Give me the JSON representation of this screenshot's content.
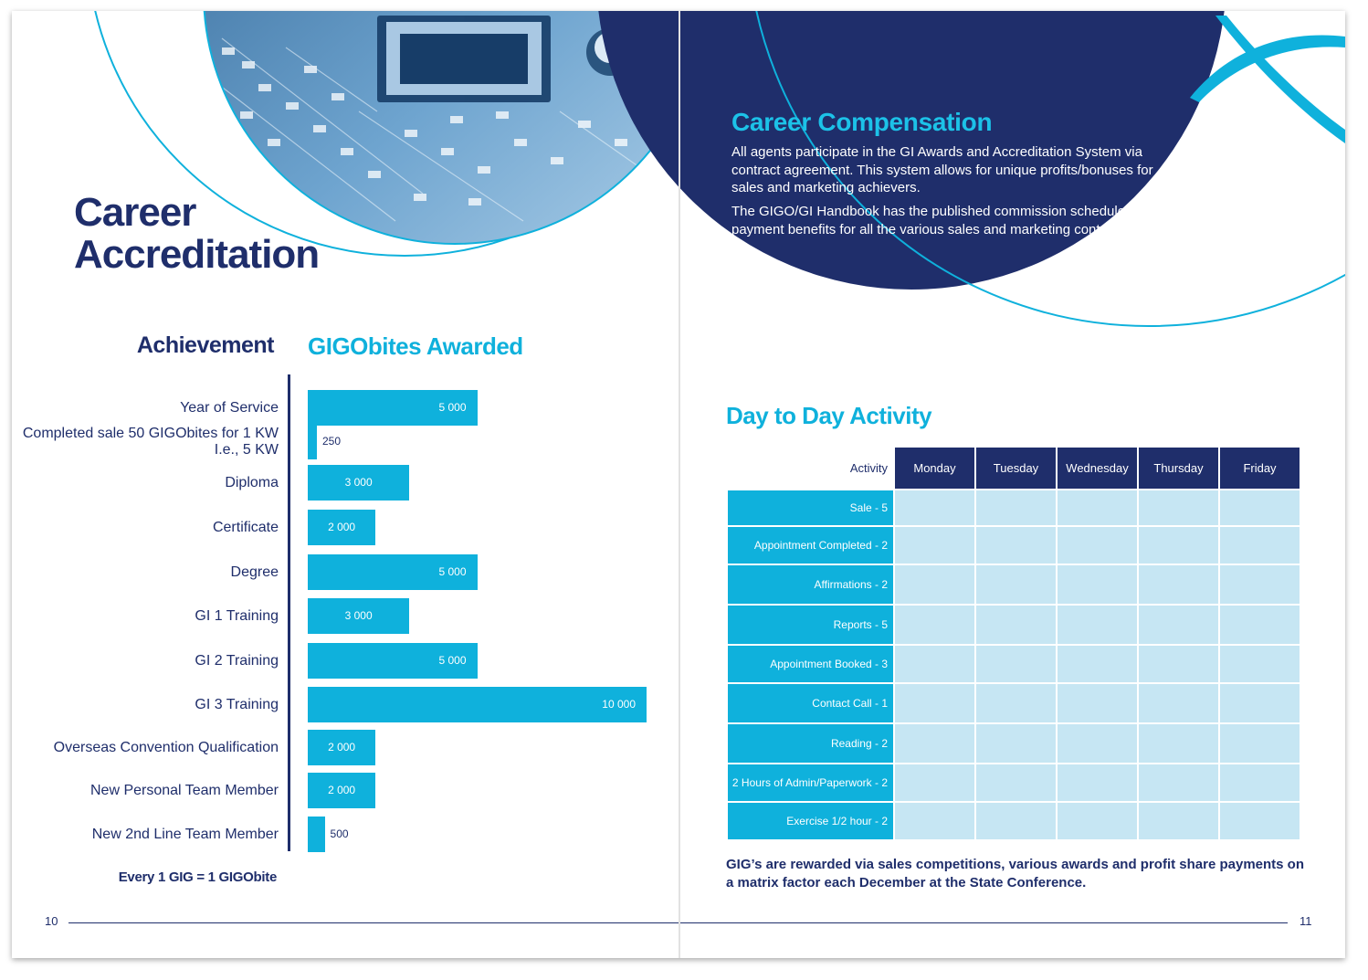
{
  "left_page": {
    "title_line1": "Career",
    "title_line2": "Accreditation",
    "achievement_heading": "Achievement",
    "awarded_heading": "GIGObites Awarded",
    "footnote": "Every 1 GIG = 1 GIGObite",
    "page_number": "10"
  },
  "chart_data": {
    "type": "bar",
    "orientation": "horizontal",
    "categories": [
      "Year of Service",
      "Completed sale 50 GIGObites for 1 KW\nI.e., 5 KW",
      "Diploma",
      "Certificate",
      "Degree",
      "GI 1 Training",
      "GI 2 Training",
      "GI 3 Training",
      "Overseas Convention Qualification",
      "New Personal Team Member",
      "New 2nd Line Team Member"
    ],
    "values": [
      5000,
      250,
      3000,
      2000,
      5000,
      3000,
      5000,
      10000,
      2000,
      2000,
      500
    ],
    "value_labels": [
      "5 000",
      "250",
      "3 000",
      "2 000",
      "5 000",
      "3 000",
      "5 000",
      "10 000",
      "2 000",
      "2 000",
      "500"
    ],
    "bar_color": "#0fb1dc",
    "axis_color": "#1f2e6b"
  },
  "right_page": {
    "compensation_title": "Career Compensation",
    "compensation_p1": "All agents participate in the GI Awards and Accreditation System via contract agreement. This system allows for unique profits/bonuses for sales and marketing achievers.",
    "compensation_p2": "The GIGO/GI Handbook has the published commission schedules, and payment benefits for all the various sales and marketing contractors.",
    "activity_title": "Day to Day Activity",
    "table": {
      "corner": "Activity",
      "days": [
        "Monday",
        "Tuesday",
        "Wednesday",
        "Thursday",
        "Friday"
      ],
      "rows": [
        "Sale - 5",
        "Appointment Completed - 2",
        "Affirmations - 2",
        "Reports - 5",
        "Appointment Booked - 3",
        "Contact Call - 1",
        "Reading - 2",
        "2 Hours of Admin/Paperwork - 2",
        "Exercise 1/2 hour - 2"
      ]
    },
    "footnote": "GIG’s are rewarded via sales competitions, various awards and profit share payments on a matrix factor each December at the State Conference.",
    "page_number": "11"
  },
  "colors": {
    "navy": "#1f2e6b",
    "cyan": "#0fb1dc",
    "table_cell": "#c6e6f3"
  }
}
